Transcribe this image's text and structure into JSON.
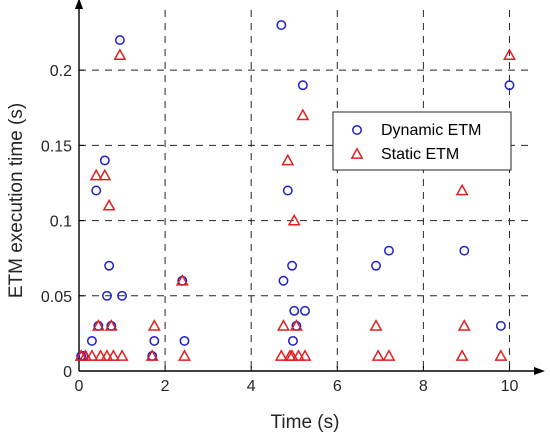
{
  "chart_data": {
    "type": "scatter",
    "title": "",
    "xlabel": "Time (s)",
    "ylabel": "ETM execution time (s)",
    "xlim": [
      0,
      10.5
    ],
    "ylim": [
      0,
      0.24
    ],
    "xticks": [
      0,
      2,
      4,
      6,
      8,
      10
    ],
    "xtick_labels": [
      "0",
      "2",
      "4",
      "6",
      "8",
      "10"
    ],
    "yticks": [
      0,
      0.05,
      0.1,
      0.15,
      0.2
    ],
    "ytick_labels": [
      "0",
      "0.05",
      "0.1",
      "0.15",
      "0.2"
    ],
    "grid": true,
    "legend": "right-middle",
    "series": [
      {
        "name": "Dynamic ETM",
        "marker": "circle",
        "color": "#1f1fc8",
        "points": [
          [
            0.05,
            0.01
          ],
          [
            0.1,
            0.01
          ],
          [
            0.3,
            0.02
          ],
          [
            0.4,
            0.12
          ],
          [
            0.45,
            0.03
          ],
          [
            0.6,
            0.14
          ],
          [
            0.65,
            0.05
          ],
          [
            0.7,
            0.07
          ],
          [
            0.75,
            0.03
          ],
          [
            0.95,
            0.22
          ],
          [
            1.0,
            0.05
          ],
          [
            1.7,
            0.01
          ],
          [
            1.75,
            0.02
          ],
          [
            2.4,
            0.06
          ],
          [
            2.45,
            0.02
          ],
          [
            4.7,
            0.23
          ],
          [
            4.75,
            0.06
          ],
          [
            4.85,
            0.12
          ],
          [
            4.95,
            0.07
          ],
          [
            4.97,
            0.02
          ],
          [
            5.0,
            0.04
          ],
          [
            5.05,
            0.03
          ],
          [
            5.2,
            0.19
          ],
          [
            5.25,
            0.04
          ],
          [
            6.9,
            0.07
          ],
          [
            7.2,
            0.08
          ],
          [
            8.95,
            0.08
          ],
          [
            9.8,
            0.03
          ],
          [
            10.0,
            0.19
          ]
        ]
      },
      {
        "name": "Static ETM",
        "marker": "triangle",
        "color": "#e02020",
        "points": [
          [
            0.05,
            0.01
          ],
          [
            0.15,
            0.01
          ],
          [
            0.3,
            0.01
          ],
          [
            0.4,
            0.13
          ],
          [
            0.45,
            0.03
          ],
          [
            0.5,
            0.01
          ],
          [
            0.6,
            0.13
          ],
          [
            0.65,
            0.01
          ],
          [
            0.7,
            0.11
          ],
          [
            0.75,
            0.03
          ],
          [
            0.8,
            0.01
          ],
          [
            0.95,
            0.21
          ],
          [
            1.0,
            0.01
          ],
          [
            1.7,
            0.01
          ],
          [
            1.75,
            0.03
          ],
          [
            2.4,
            0.06
          ],
          [
            2.45,
            0.01
          ],
          [
            4.7,
            0.01
          ],
          [
            4.75,
            0.03
          ],
          [
            4.85,
            0.14
          ],
          [
            4.9,
            0.01
          ],
          [
            4.95,
            0.01
          ],
          [
            5.0,
            0.1
          ],
          [
            5.05,
            0.03
          ],
          [
            5.1,
            0.01
          ],
          [
            5.2,
            0.17
          ],
          [
            5.25,
            0.01
          ],
          [
            6.9,
            0.03
          ],
          [
            6.95,
            0.01
          ],
          [
            7.2,
            0.01
          ],
          [
            8.9,
            0.12
          ],
          [
            8.95,
            0.03
          ],
          [
            8.9,
            0.01
          ],
          [
            9.8,
            0.01
          ],
          [
            10.0,
            0.21
          ]
        ]
      }
    ]
  }
}
